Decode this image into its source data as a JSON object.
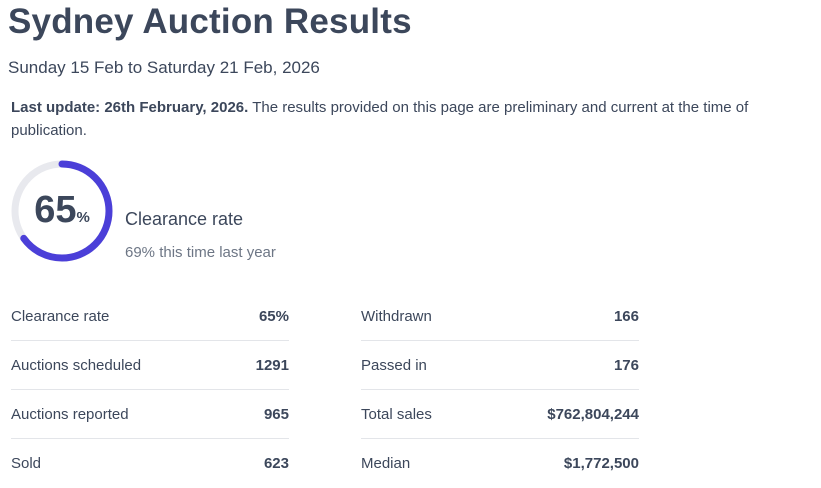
{
  "page": {
    "title": "Sydney Auction Results",
    "date_range": "Sunday 15 Feb to Saturday 21 Feb, 2026",
    "update_bold": "Last update: 26th February, 2026.",
    "update_text": " The results provided on this page are preliminary and current at the time of publication."
  },
  "summary": {
    "clearance_value": "65",
    "clearance_unit": "%",
    "clearance_fraction": 0.65,
    "clearance_label": "Clearance rate",
    "last_year": "69% this time last year",
    "ring_color": "#4b3fd8",
    "ring_track_color": "#e8e9ee"
  },
  "stats_left": [
    {
      "label": "Clearance rate",
      "value": "65%"
    },
    {
      "label": "Auctions scheduled",
      "value": "1291"
    },
    {
      "label": "Auctions reported",
      "value": "965"
    },
    {
      "label": "Sold",
      "value": "623"
    }
  ],
  "stats_right": [
    {
      "label": "Withdrawn",
      "value": "166"
    },
    {
      "label": "Passed in",
      "value": "176"
    },
    {
      "label": "Total sales",
      "value": "$762,804,244"
    },
    {
      "label": "Median",
      "value": "$1,772,500"
    }
  ]
}
